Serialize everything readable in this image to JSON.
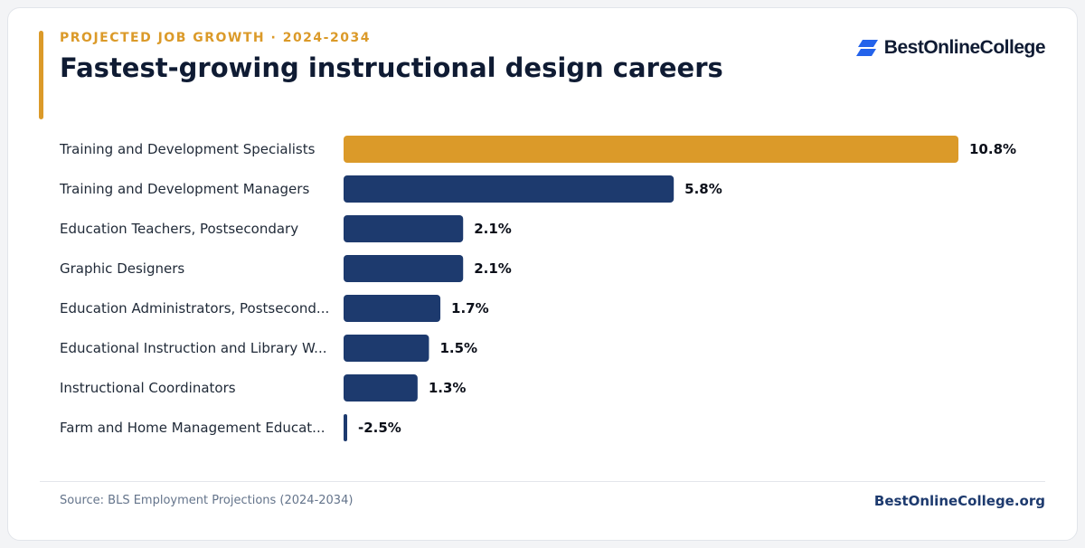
{
  "header": {
    "eyebrow": "PROJECTED JOB GROWTH · 2024-2034",
    "title": "Fastest-growing instructional design careers"
  },
  "logo": {
    "text": "BestOnlineCollege",
    "icon": "parallelogram-stack-logo-icon"
  },
  "chart_data": {
    "type": "bar",
    "orientation": "horizontal",
    "categories": [
      "Training and Development Specialists",
      "Training and Development Managers",
      "Education Teachers, Postsecondary",
      "Graphic Designers",
      "Education Administrators, Postsecond...",
      "Educational Instruction and Library W...",
      "Instructional Coordinators",
      "Farm and Home Management Educat..."
    ],
    "values": [
      10.8,
      5.8,
      2.1,
      2.1,
      1.7,
      1.5,
      1.3,
      -2.5
    ],
    "value_labels": [
      "10.8%",
      "5.8%",
      "2.1%",
      "2.1%",
      "1.7%",
      "1.5%",
      "1.3%",
      "-2.5%"
    ],
    "highlight_index": 0,
    "xlim": [
      0,
      10.8
    ],
    "grid": false,
    "legend": "none"
  },
  "footer": {
    "source": "Source: BLS Employment Projections (2024-2034)",
    "site": "BestOnlineCollege.org"
  },
  "colors": {
    "accent": "#db9a29",
    "bar": "#1d3a6e",
    "title": "#0f1b33",
    "label": "#1f2937",
    "value": "#0b0f19",
    "muted": "#64748b",
    "logo_blue": "#2463eb"
  }
}
